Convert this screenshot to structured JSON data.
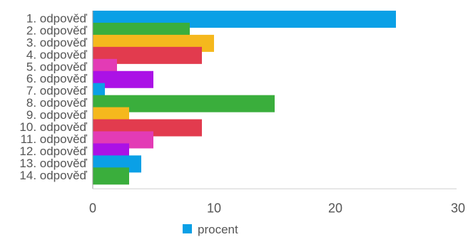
{
  "chart_data": {
    "type": "bar",
    "orientation": "horizontal",
    "categories": [
      "1. odpověď",
      "2. odpověď",
      "3. odpověď",
      "4. odpověď",
      "5. odpověď",
      "6. odpověď",
      "7. odpověď",
      "8. odpověď",
      "9. odpověď",
      "10. odpověď",
      "11. odpověď",
      "12. odpověď",
      "13. odpověď",
      "14. odpověď"
    ],
    "series": [
      {
        "name": "procent",
        "values": [
          25,
          8,
          10,
          9,
          2,
          5,
          1,
          15,
          3,
          9,
          5,
          3,
          4,
          3
        ]
      }
    ],
    "bar_colors": [
      "#0aa0e6",
      "#3aae3c",
      "#f5b81d",
      "#e23b4e",
      "#e33bb5",
      "#ab11e6",
      "#0aa0e6",
      "#3aae3c",
      "#f5b81d",
      "#e23b4e",
      "#e33bb5",
      "#ab11e6",
      "#0aa0e6",
      "#3aae3c"
    ],
    "xlim": [
      0,
      30
    ],
    "x_ticks": [
      "0",
      "10",
      "20",
      "30"
    ],
    "legend": {
      "label": "procent",
      "color": "#0aa0e6",
      "position": "bottom"
    },
    "grid": false
  }
}
